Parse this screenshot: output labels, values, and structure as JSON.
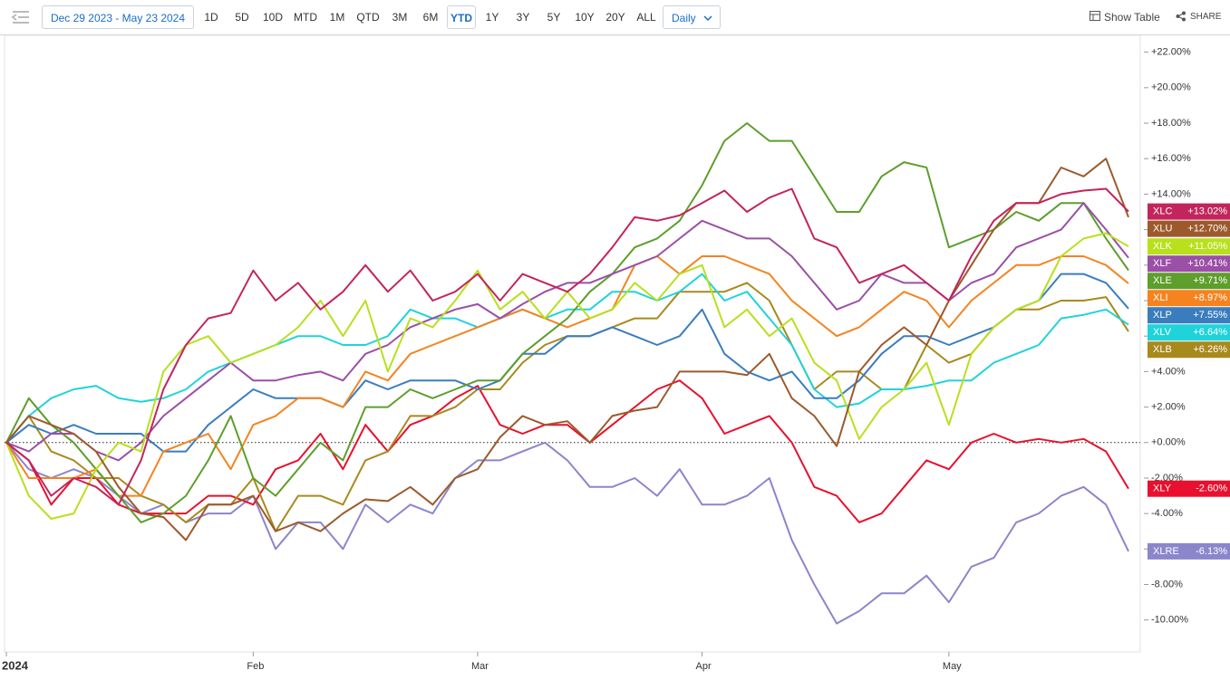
{
  "toolbar": {
    "date_range": "Dec 29 2023 - May 23 2024",
    "ranges": [
      "1D",
      "5D",
      "10D",
      "MTD",
      "1M",
      "QTD",
      "3M",
      "6M",
      "YTD",
      "1Y",
      "3Y",
      "5Y",
      "10Y",
      "20Y",
      "ALL"
    ],
    "active": "YTD",
    "interval": "Daily",
    "show_table": "Show Table",
    "share": "SHARE"
  },
  "chart_data": {
    "type": "line",
    "categories": [
      "2024",
      null,
      null,
      null,
      null,
      null,
      null,
      null,
      null,
      null,
      null,
      "Feb",
      null,
      null,
      null,
      null,
      null,
      null,
      null,
      null,
      null,
      "Mar",
      null,
      null,
      null,
      null,
      null,
      null,
      null,
      null,
      null,
      "Apr",
      null,
      null,
      null,
      null,
      null,
      null,
      null,
      null,
      null,
      null,
      "May",
      null,
      null,
      null,
      null,
      null,
      null,
      null,
      null
    ],
    "ylim": [
      -11.8,
      22.9
    ],
    "yticks": [
      {
        "value": -10,
        "label": "-10.00%"
      },
      {
        "value": -8,
        "label": "-8.00%"
      },
      {
        "value": -6,
        "label": "-6.00%"
      },
      {
        "value": -4,
        "label": "-4.00%"
      },
      {
        "value": -2,
        "label": "-2.00%"
      },
      {
        "value": 0,
        "label": "+0.00%"
      },
      {
        "value": 2,
        "label": "+2.00%"
      },
      {
        "value": 4,
        "label": "+4.00%"
      },
      {
        "value": 6,
        "label": "+6.00%"
      },
      {
        "value": 8,
        "label": "+8.00%"
      },
      {
        "value": 10,
        "label": "+10.00%"
      },
      {
        "value": 12,
        "label": "+12.00%"
      },
      {
        "value": 14,
        "label": "+14.00%"
      },
      {
        "value": 16,
        "label": "+16.00%"
      },
      {
        "value": 18,
        "label": "+18.00%"
      },
      {
        "value": 20,
        "label": "+20.00%"
      },
      {
        "value": 22,
        "label": "+22.00%"
      }
    ],
    "zero_line": true,
    "series": [
      {
        "name": "XLRE",
        "color": "#8b86cc",
        "end_label": "-6.13%",
        "values": [
          0,
          -1.5,
          -2,
          -1.5,
          -2,
          -3,
          -4,
          -3.5,
          -4.5,
          -4,
          -4,
          -3,
          -6,
          -4.5,
          -4.5,
          -6,
          -3.5,
          -4.5,
          -3.5,
          -4,
          -2,
          -1,
          -1,
          -0.5,
          0,
          -1,
          -2.5,
          -2.5,
          -2,
          -3,
          -1.5,
          -3.5,
          -3.5,
          -3,
          -2,
          -5.5,
          -8,
          -10.2,
          -9.5,
          -8.5,
          -8.5,
          -7.5,
          -9,
          -7,
          -6.5,
          -4.5,
          -4,
          -3,
          -2.5,
          -3.5,
          -6.13
        ]
      },
      {
        "name": "XLY",
        "color": "#e8102e",
        "end_label": "-2.60%",
        "values": [
          0,
          -1,
          -3.5,
          -2,
          -2,
          -3.5,
          -4,
          -4,
          -4,
          -3,
          -3,
          -3.5,
          -1.5,
          -1,
          0.5,
          -1.5,
          1,
          -0.5,
          1,
          1.5,
          2.5,
          3.2,
          1,
          0.5,
          1,
          1,
          0,
          1,
          2,
          3,
          3.5,
          2.5,
          0.5,
          1,
          1.5,
          0,
          -2.5,
          -3,
          -4.5,
          -4,
          -2.5,
          -1,
          -1.5,
          0,
          0.5,
          0,
          0.2,
          0,
          0.2,
          -0.5,
          -2.6
        ]
      },
      {
        "name": "XLB",
        "color": "#a8891c",
        "end_label": "+6.26%",
        "values": [
          0,
          1.5,
          -0.5,
          -1,
          -2,
          -2,
          -3,
          -3.5,
          -4.5,
          -3.5,
          -3.5,
          -2,
          -5,
          -3,
          -3,
          -3.5,
          -1,
          -0.5,
          1.5,
          1.5,
          2,
          3,
          3,
          4.5,
          5.5,
          6,
          6,
          6.5,
          7,
          7,
          8.5,
          8.5,
          8.5,
          9,
          8,
          5.5,
          3,
          4,
          4,
          3,
          3,
          5.5,
          4.5,
          5,
          6.5,
          7.5,
          7.5,
          8,
          8,
          8.2,
          6.26
        ]
      },
      {
        "name": "XLV",
        "color": "#20d3da",
        "end_label": "+6.64%",
        "values": [
          0,
          1.5,
          2.5,
          3,
          3.2,
          2.5,
          2.3,
          2.5,
          3,
          4,
          4.5,
          5,
          5.5,
          6,
          6,
          5.5,
          5.5,
          6,
          7.5,
          7,
          7,
          6.5,
          7,
          7.5,
          7,
          7.5,
          7.5,
          8.5,
          8.5,
          8,
          8.5,
          9.5,
          8,
          8.5,
          7,
          5.5,
          3,
          2,
          2.2,
          3,
          3,
          3.2,
          3.5,
          3.5,
          4.5,
          5,
          5.5,
          7,
          7.2,
          7.5,
          6.64
        ]
      },
      {
        "name": "XLP",
        "color": "#3a7dbf",
        "end_label": "+7.55%",
        "values": [
          0,
          1,
          0.5,
          1,
          0.5,
          0.5,
          0.5,
          -0.5,
          -0.5,
          1,
          2,
          3,
          2.5,
          2.5,
          2.5,
          2,
          3.5,
          3,
          3.5,
          3.5,
          3.5,
          3,
          3.5,
          5,
          5,
          6,
          6,
          6.5,
          6,
          5.5,
          6,
          7.5,
          5,
          4,
          3.5,
          4,
          2.5,
          2.5,
          3.5,
          5,
          6,
          6,
          5.5,
          6,
          6.5,
          7.5,
          8,
          9.5,
          9.5,
          9,
          7.55
        ]
      },
      {
        "name": "XLI",
        "color": "#f5831f",
        "end_label": "+8.97%",
        "values": [
          0,
          -2,
          -2,
          -2,
          -1.5,
          -3,
          -3,
          -0.5,
          0,
          0.5,
          -1.5,
          1,
          1.5,
          2.5,
          2.5,
          2,
          4,
          3.5,
          5,
          5.5,
          6,
          6.5,
          7,
          7.5,
          7,
          6.5,
          7,
          7.5,
          10,
          10.5,
          9.5,
          10.5,
          10.5,
          10,
          9.5,
          8,
          7,
          6,
          6.5,
          7.5,
          8.5,
          8,
          6.5,
          8,
          9,
          10,
          10,
          10.5,
          10.5,
          10,
          8.97
        ]
      },
      {
        "name": "XLE",
        "color": "#5d9e2c",
        "end_label": "+9.71%",
        "values": [
          0,
          2.5,
          1,
          0,
          -1.5,
          -3,
          -4.5,
          -4,
          -3,
          -1,
          1.5,
          -2,
          -3,
          -1.5,
          0,
          -1,
          2,
          2,
          3,
          2.5,
          3,
          3.5,
          3.5,
          5,
          6,
          7,
          8.5,
          9.5,
          11,
          11.5,
          12.5,
          14.5,
          17,
          18,
          17,
          17,
          15,
          13,
          13,
          15,
          15.8,
          15.5,
          11,
          11.5,
          12,
          13,
          12.5,
          13.5,
          13.5,
          11.5,
          9.71
        ]
      },
      {
        "name": "XLF",
        "color": "#9b4fa6",
        "end_label": "+10.41%",
        "values": [
          0,
          -0.5,
          0.5,
          0.5,
          -0.5,
          -1,
          0,
          1.5,
          2.5,
          3.5,
          4.5,
          3.5,
          3.5,
          3.8,
          4,
          3.5,
          5,
          5.5,
          6.5,
          7,
          7.5,
          7.8,
          7,
          7.8,
          8.5,
          9,
          9,
          9.5,
          10,
          10.5,
          11.5,
          12.5,
          12,
          11.5,
          11.5,
          10.5,
          9,
          7.5,
          8,
          9.5,
          9,
          9,
          8,
          9,
          9.5,
          11,
          11.5,
          12,
          13.5,
          12,
          10.41
        ]
      },
      {
        "name": "XLK",
        "color": "#b8e01c",
        "end_label": "+11.05%",
        "values": [
          0,
          -3,
          -4.3,
          -4,
          -1.5,
          0,
          -0.5,
          4,
          5.5,
          6,
          4.5,
          5,
          5.5,
          6.5,
          8,
          6,
          8,
          4,
          7,
          6.5,
          8,
          9.7,
          7.5,
          8.5,
          7,
          8.5,
          7,
          7.5,
          9,
          8,
          9.5,
          10,
          6.5,
          7.5,
          6,
          7,
          4.5,
          3.5,
          0.2,
          2,
          3,
          4.5,
          1,
          5,
          6.5,
          7.5,
          8,
          10.5,
          11.5,
          11.8,
          11.05
        ]
      },
      {
        "name": "XLU",
        "color": "#9c5a2c",
        "end_label": "+12.70%",
        "values": [
          0,
          1.5,
          1,
          0.5,
          -0.5,
          -2.5,
          -4,
          -4.2,
          -5.5,
          -3.5,
          -3.5,
          -3,
          -5,
          -4.5,
          -5,
          -4,
          -3.2,
          -3.3,
          -2.5,
          -3.5,
          -2,
          -1.5,
          0.3,
          1.5,
          1,
          1.2,
          0,
          1.5,
          1.8,
          2,
          4,
          4,
          4,
          3.8,
          5,
          2.5,
          1.5,
          -0.2,
          4,
          5.5,
          6.5,
          5.5,
          8,
          10,
          12,
          13.5,
          13.5,
          15.5,
          15,
          16,
          12.7
        ]
      },
      {
        "name": "XLC",
        "color": "#c2255c",
        "end_label": "+13.02%",
        "values": [
          0,
          -1,
          -3,
          -2,
          -2.5,
          -3.5,
          -1,
          3,
          5.5,
          7,
          7.3,
          9.7,
          8,
          9,
          7.5,
          8.5,
          10,
          8.5,
          9.7,
          8,
          8.5,
          9.5,
          8,
          9.5,
          9,
          8.5,
          9.5,
          11,
          12.7,
          12.5,
          12.8,
          13.5,
          14.2,
          13,
          13.8,
          14.3,
          11.5,
          11,
          9,
          9.5,
          10,
          9,
          8,
          10.5,
          12.5,
          13.5,
          13.5,
          14,
          14.2,
          14.3,
          13.02
        ]
      }
    ]
  }
}
